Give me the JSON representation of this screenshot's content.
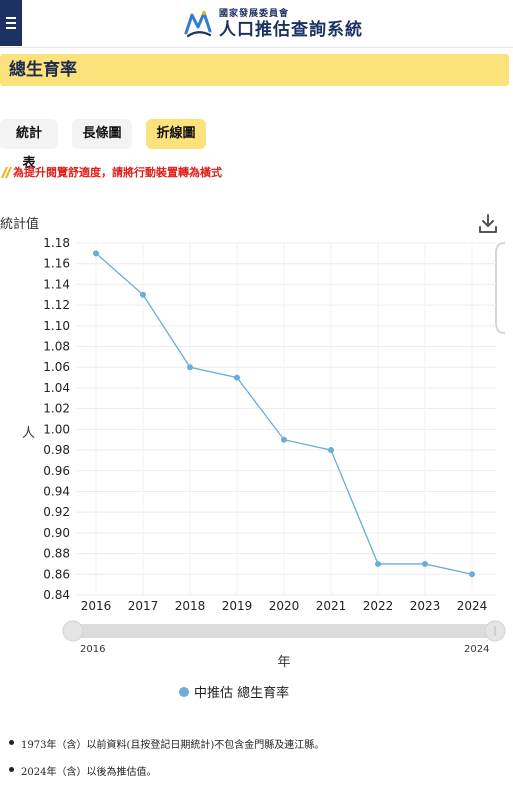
{
  "header": {
    "org": "國家發展委員會",
    "system": "人口推估查詢系統",
    "menu_icon": "hamburger-icon",
    "logo_icon": "ndc-logo-icon"
  },
  "page_title": "總生育率",
  "tabs": [
    {
      "label": "統計表",
      "active": false
    },
    {
      "label": "長條圖",
      "active": false
    },
    {
      "label": "折線圖",
      "active": true
    }
  ],
  "notice": "為提升閱覽舒適度，請將行動裝置轉為橫式",
  "download_icon": "download-icon",
  "colors": {
    "accent": "#fbe27a",
    "navy": "#1e3163",
    "series": "#6aadd5",
    "notice": "#e0201c"
  },
  "chart_data": {
    "type": "line",
    "ylabel_top": "統計值",
    "yunit": "人",
    "xlabel": "年",
    "x": [
      "2016",
      "2017",
      "2018",
      "2019",
      "2020",
      "2021",
      "2022",
      "2023",
      "2024"
    ],
    "series": [
      {
        "name": "中推估 總生育率",
        "values": [
          1.17,
          1.13,
          1.06,
          1.05,
          0.99,
          0.98,
          0.87,
          0.87,
          0.86
        ]
      }
    ],
    "ylim": [
      0.84,
      1.18
    ],
    "yticks": [
      "1.18",
      "1.16",
      "1.14",
      "1.12",
      "1.10",
      "1.08",
      "1.06",
      "1.04",
      "1.02",
      "1.00",
      "0.98",
      "0.96",
      "0.94",
      "0.92",
      "0.90",
      "0.88",
      "0.86",
      "0.84"
    ],
    "grid": true,
    "legend": "bottom-center",
    "range_slider": {
      "start": "2016",
      "end": "2024"
    }
  },
  "notes": [
    "1973年（含）以前資料(且按登記日期統計)不包含金門縣及連江縣。",
    "2024年（含）以後為推估值。"
  ]
}
